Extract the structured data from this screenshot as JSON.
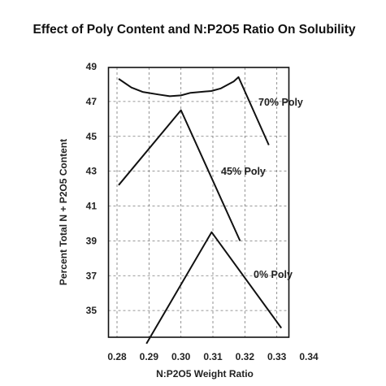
{
  "chart_data": {
    "type": "line",
    "title": "Effect of Poly Content and N:P2O5 Ratio On Solubility",
    "xlabel": "N:P2O5 Weight Ratio",
    "ylabel": "Percent Total N + P2O5 Content",
    "xlim": [
      0.28,
      0.34
    ],
    "ylim": [
      33,
      49
    ],
    "xticks": [
      "0.28",
      "0.29",
      "0.30",
      "0.31",
      "0.32",
      "0.33",
      "0.34"
    ],
    "yticks": [
      "35",
      "37",
      "39",
      "41",
      "43",
      "45",
      "47",
      "49"
    ],
    "grid": true,
    "series": [
      {
        "name": "70% Poly",
        "points": [
          [
            0.2805,
            48.3
          ],
          [
            0.2845,
            47.8
          ],
          [
            0.288,
            47.55
          ],
          [
            0.293,
            47.4
          ],
          [
            0.2965,
            47.3
          ],
          [
            0.3,
            47.35
          ],
          [
            0.303,
            47.5
          ],
          [
            0.3095,
            47.6
          ],
          [
            0.3125,
            47.75
          ],
          [
            0.3165,
            48.15
          ],
          [
            0.318,
            48.4
          ],
          [
            0.3275,
            44.5
          ]
        ]
      },
      {
        "name": "45% Poly",
        "points": [
          [
            0.2805,
            42.2
          ],
          [
            0.3,
            46.5
          ],
          [
            0.3185,
            39.0
          ]
        ]
      },
      {
        "name": "0% Poly",
        "points": [
          [
            0.2892,
            33.1
          ],
          [
            0.3096,
            39.5
          ],
          [
            0.3314,
            34.0
          ]
        ]
      }
    ]
  }
}
